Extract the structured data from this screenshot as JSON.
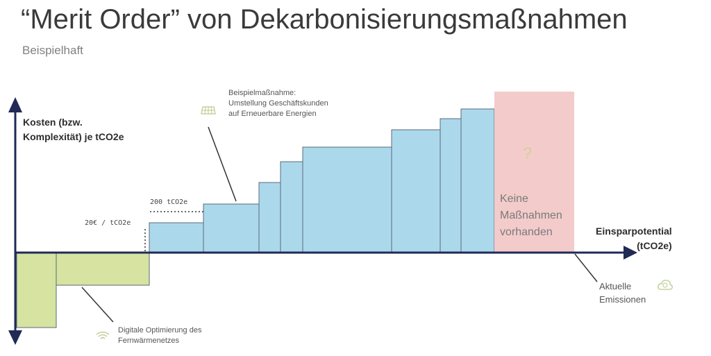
{
  "title": "“Merit Order” von Dekarbonisierungsmaßnahmen",
  "subtitle": "Beispielhaft",
  "chart_data": {
    "type": "bar",
    "ylabel_lines": [
      "Kosten (bzw.",
      "Komplexität) je tCO2e"
    ],
    "xlabel_lines": [
      "Einsparpotential",
      "(tCO2e)"
    ],
    "bars": [
      {
        "width": 57,
        "value": -108,
        "color": "#d6e3a1"
      },
      {
        "width": 134,
        "value": -47,
        "color": "#d6e3a1"
      },
      {
        "width": 78,
        "value": 43,
        "color": "#acd8ec"
      },
      {
        "width": 80,
        "value": 70,
        "color": "#acd8ec"
      },
      {
        "width": 31,
        "value": 101,
        "color": "#acd8ec"
      },
      {
        "width": 32,
        "value": 131,
        "color": "#acd8ec"
      },
      {
        "width": 128,
        "value": 152,
        "color": "#acd8ec"
      },
      {
        "width": 70,
        "value": 177,
        "color": "#acd8ec"
      },
      {
        "width": 30,
        "value": 193,
        "color": "#acd8ec"
      },
      {
        "width": 48,
        "value": 207,
        "color": "#acd8ec"
      },
      {
        "width": 115,
        "value": 232,
        "color": "#f3cbcb"
      }
    ],
    "annotations": {
      "cost_marker": "20€ / tCO2e",
      "volume_marker": "200 tCO2e",
      "example_label_lines": [
        "Beispielmaßnahme:",
        "Umstellung Geschäftskunden",
        "auf Erneuerbare Energien"
      ],
      "green_label_lines": [
        "Digitale Optimierung des",
        "Fernwärmenetzes"
      ],
      "emissions_label_lines": [
        "Aktuelle",
        "Emissionen"
      ],
      "no_measures_lines": [
        "Keine",
        "Maßnahmen",
        "vorhanden"
      ],
      "question_mark": "?"
    }
  }
}
